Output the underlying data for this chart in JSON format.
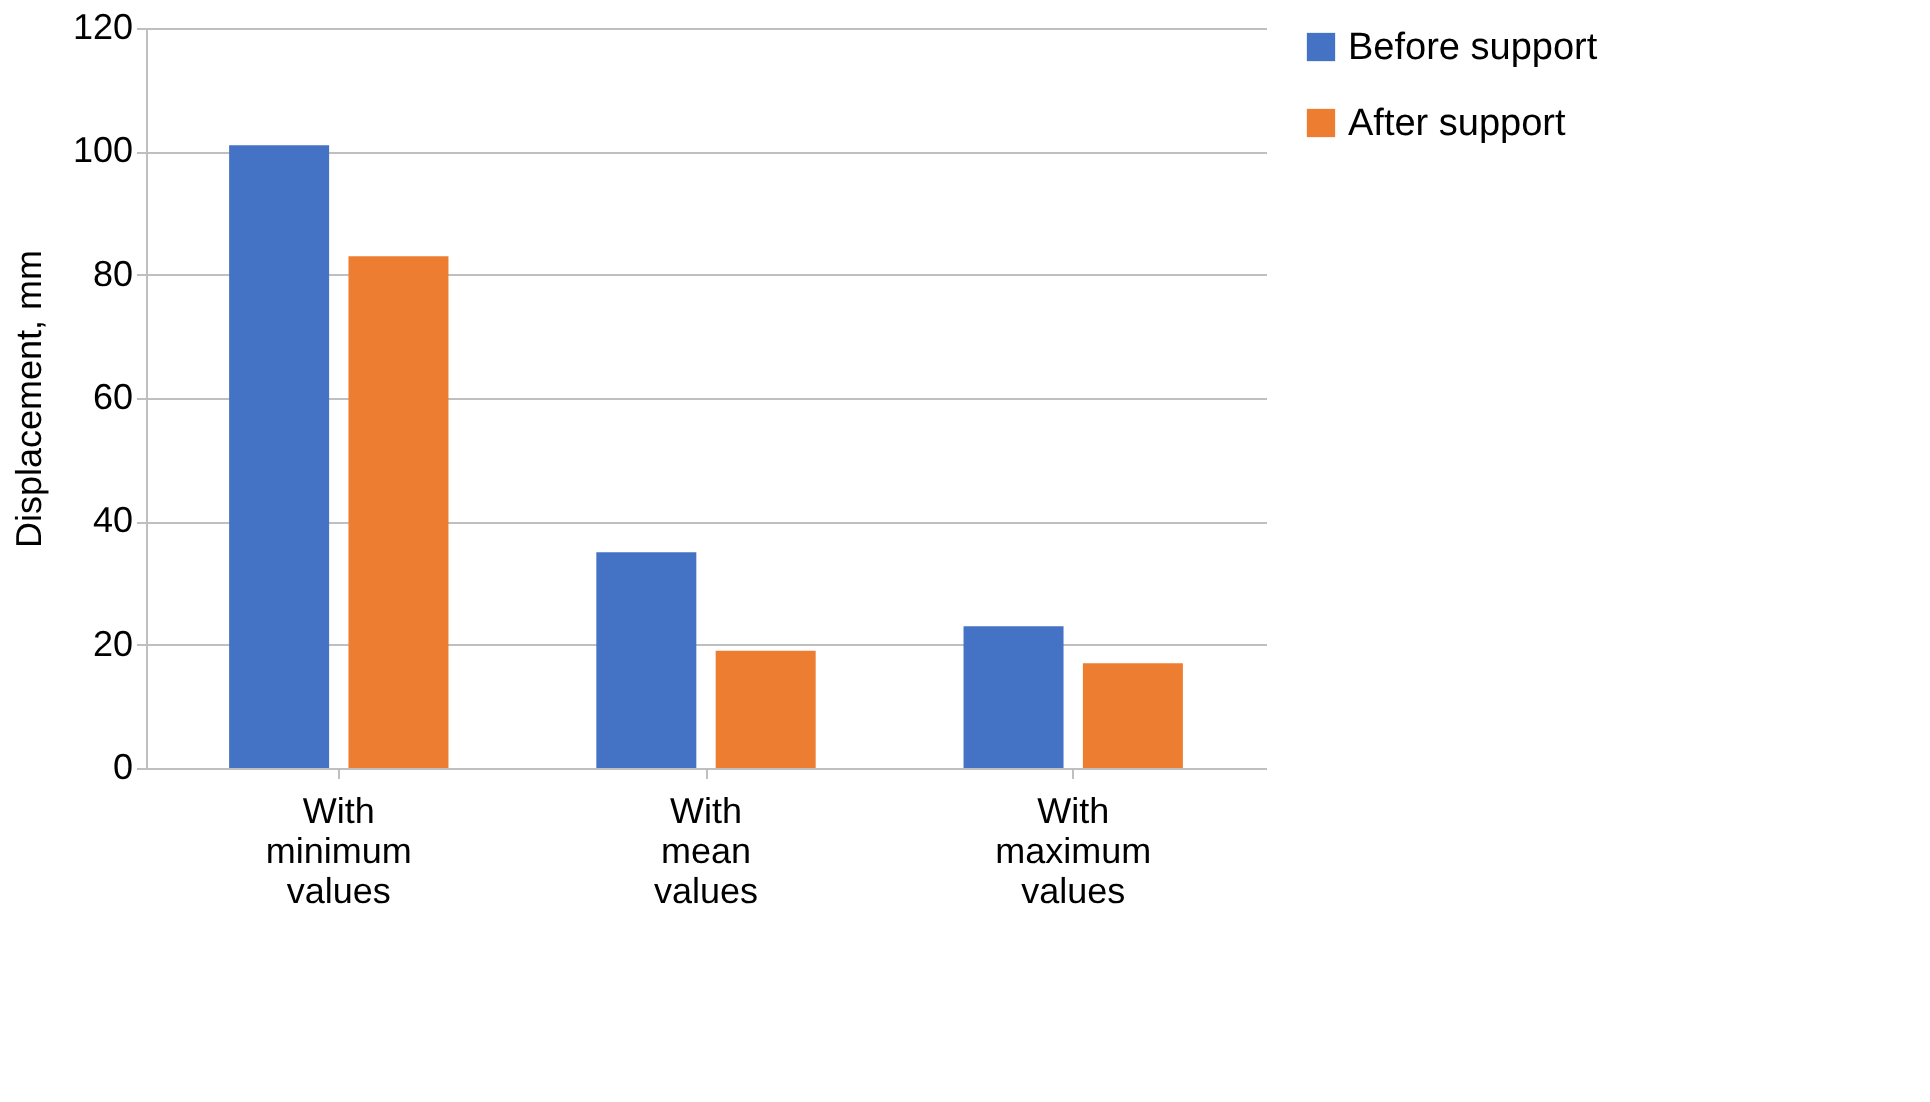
{
  "chart_data": {
    "type": "bar",
    "ylabel": "Displacement, mm",
    "categories": [
      "With minimum values",
      "With mean values",
      "With maximum values"
    ],
    "series": [
      {
        "name": "Before support",
        "color": "#4472c4",
        "values": [
          101,
          35,
          23
        ]
      },
      {
        "name": "After support",
        "color": "#ed7d31",
        "values": [
          83,
          19,
          17
        ]
      }
    ],
    "ylim": [
      0,
      120
    ],
    "yticks": [
      0,
      20,
      40,
      60,
      80,
      100,
      120
    ],
    "grid": "y",
    "legend": "right"
  }
}
